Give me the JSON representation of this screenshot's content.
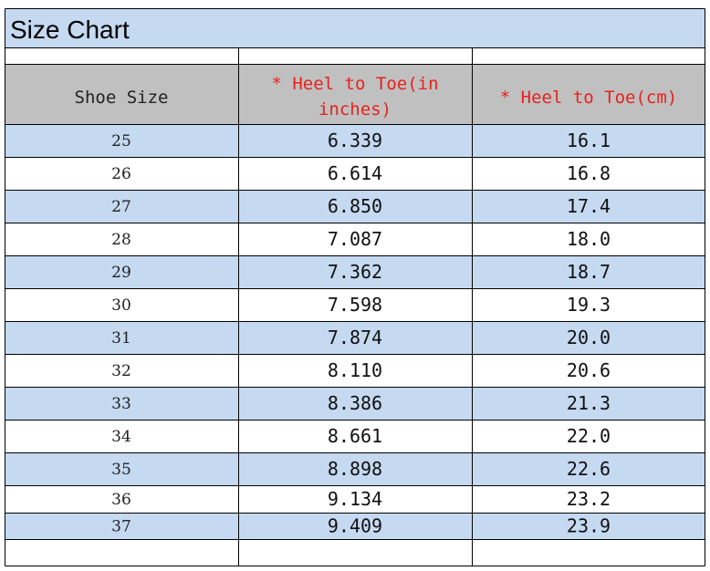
{
  "title": "Size Chart",
  "headers": {
    "shoe_size": "Shoe Size",
    "inches_line1": "* Heel to Toe(in",
    "inches_line2": "inches)",
    "cm": "* Heel to Toe(cm)"
  },
  "colors": {
    "title_bg": "#c5d9f1",
    "header_bg": "#c0c0c0",
    "stripe_bg": "#c5d9f1",
    "header_accent": "#e8211d",
    "grid": "#000000"
  },
  "rows": [
    {
      "size": "25",
      "inches": "6.339",
      "cm": "16.1"
    },
    {
      "size": "26",
      "inches": "6.614",
      "cm": "16.8"
    },
    {
      "size": "27",
      "inches": "6.850",
      "cm": "17.4"
    },
    {
      "size": "28",
      "inches": "7.087",
      "cm": "18.0"
    },
    {
      "size": "29",
      "inches": "7.362",
      "cm": "18.7"
    },
    {
      "size": "30",
      "inches": "7.598",
      "cm": "19.3"
    },
    {
      "size": "31",
      "inches": "7.874",
      "cm": "20.0"
    },
    {
      "size": "32",
      "inches": "8.110",
      "cm": "20.6"
    },
    {
      "size": "33",
      "inches": "8.386",
      "cm": "21.3"
    },
    {
      "size": "34",
      "inches": "8.661",
      "cm": "22.0"
    },
    {
      "size": "35",
      "inches": "8.898",
      "cm": "22.6"
    },
    {
      "size": "36",
      "inches": "9.134",
      "cm": "23.2"
    },
    {
      "size": "37",
      "inches": "9.409",
      "cm": "23.9"
    }
  ]
}
